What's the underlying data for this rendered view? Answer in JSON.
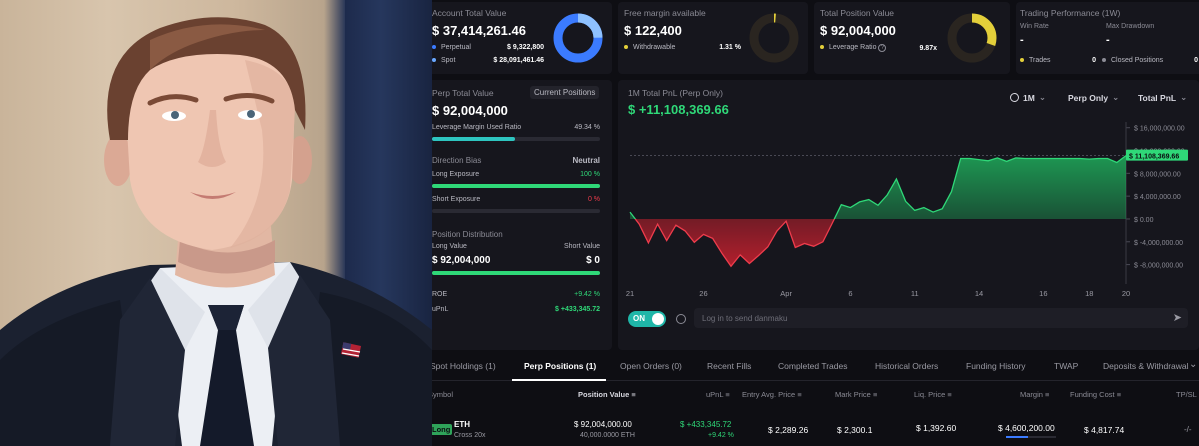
{
  "cards": {
    "account": {
      "label": "Account Total Value",
      "value": "$ 37,414,261.46",
      "rows": [
        {
          "label": "Perpetual",
          "value": "$ 9,322,800",
          "color": "#3b7bff"
        },
        {
          "label": "Spot",
          "value": "$ 28,091,461.46",
          "color": "#6aa8ff"
        }
      ],
      "donut": [
        0.25,
        0.75
      ]
    },
    "margin": {
      "label": "Free margin available",
      "value": "$ 122,400",
      "row": {
        "label": "Withdrawable",
        "value": "1.31 %",
        "color": "#e3cf3a"
      }
    },
    "position": {
      "label": "Total Position Value",
      "value": "$ 92,004,000",
      "row": {
        "label": "Leverage Ratio",
        "value": "9.87x",
        "color": "#e3cf3a"
      },
      "donut_fill": 0.3
    },
    "performance": {
      "label": "Trading Performance (1W)",
      "win_rate_label": "Win Rate",
      "win_rate": "-",
      "max_dd_label": "Max Drawdown",
      "max_dd": "-",
      "trades_label": "Trades",
      "trades": "0",
      "closed_label": "Closed Positions",
      "closed": "0"
    }
  },
  "perp": {
    "label": "Perp Total Value",
    "current_positions": "Current Positions",
    "value": "$ 92,004,000",
    "leverage_label": "Leverage Margin Used Ratio",
    "leverage_value": "49.34 %",
    "leverage_fill": 0.4934,
    "bias_label": "Direction Bias",
    "bias_value": "Neutral",
    "long_label": "Long Exposure",
    "long_value": "100 %",
    "long_fill": 1.0,
    "short_label": "Short Exposure",
    "short_value": "0 %",
    "dist_label": "Position Distribution",
    "long_val_label": "Long Value",
    "short_val_label": "Short Value",
    "long_val": "$ 92,004,000",
    "short_val": "$ 0",
    "roe_label": "ROE",
    "roe": "+9.42 %",
    "upnl_label": "uPnL",
    "upnl": "$ +433,345.72"
  },
  "pnl": {
    "label": "1M Total PnL (Perp Only)",
    "value": "$ +11,108,369.66",
    "range_btn": "1M",
    "mode_btn": "Perp Only",
    "metric_btn": "Total PnL",
    "toggle": "ON",
    "chat_placeholder": "Log in to send danmaku"
  },
  "chart_data": {
    "type": "area",
    "x_ticks": [
      "21",
      "26",
      "Apr",
      "6",
      "11",
      "14",
      "16",
      "18",
      "20"
    ],
    "y_ticks": [
      "$ 16,000,000.00",
      "$ 12,000,000.00",
      "$ 8,000,000.00",
      "$ 4,000,000.00",
      "$ 0.00",
      "$ -4,000,000.00",
      "$ -8,000,000.00"
    ],
    "ylim": [
      -10000000,
      17000000
    ],
    "current_label": "$ 11,108,369.66",
    "values": [
      1200000,
      -900000,
      -4200000,
      -900000,
      -3800000,
      -1100000,
      -2100000,
      -4100000,
      -2700000,
      -3400000,
      -6000000,
      -8300000,
      -6300000,
      -7800000,
      -6400000,
      -4900000,
      -2100000,
      -400000,
      -5000000,
      -4300000,
      -4800000,
      -4000000,
      -800000,
      2500000,
      2000000,
      3000000,
      3400000,
      2400000,
      4200000,
      7000000,
      3100000,
      1500000,
      2000000,
      1200000,
      1800000,
      4800000,
      10600000,
      10600000,
      10400000,
      10200000,
      10700000,
      10100000,
      10700000,
      10600000,
      10600000,
      10600000,
      10600000,
      10600000,
      10600000,
      10600000,
      10500000,
      10600000,
      10600000,
      9900000,
      11108369
    ]
  },
  "tabs": [
    {
      "label": "Spot Holdings (1)"
    },
    {
      "label": "Perp Positions (1)"
    },
    {
      "label": "Open Orders (0)"
    },
    {
      "label": "Recent Fills"
    },
    {
      "label": "Completed Trades"
    },
    {
      "label": "Historical Orders"
    },
    {
      "label": "Funding History"
    },
    {
      "label": "TWAP"
    },
    {
      "label": "Deposits & Withdrawals"
    }
  ],
  "table": {
    "headers": [
      "Symbol",
      "Position Value",
      "uPnL",
      "Entry Avg. Price",
      "Mark Price",
      "Liq. Price",
      "Margin",
      "Funding Cost",
      "TP/SL"
    ],
    "row": {
      "side": "Long",
      "symbol": "ETH",
      "margin_mode": "Cross 20x",
      "position_value": "$ 92,004,000.00",
      "position_size": "40,000.0000 ETH",
      "upnl": "$ +433,345.72",
      "upnl_pct": "+9.42 %",
      "entry": "$ 2,289.26",
      "mark": "$ 2,300.1",
      "liq": "$ 1,392.60",
      "margin": "$ 4,600,200.00",
      "funding": "$ 4,817.74",
      "tpsl": "-/-"
    }
  }
}
